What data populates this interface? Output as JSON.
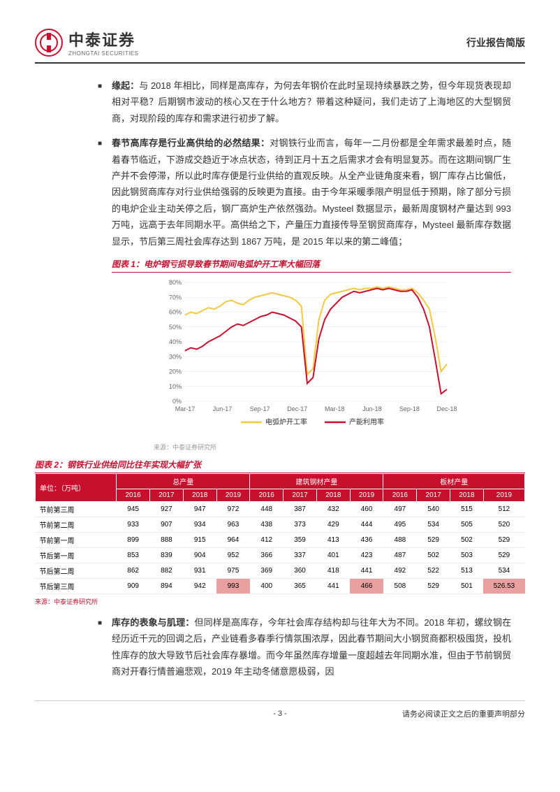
{
  "header": {
    "logo_main": "中泰证券",
    "logo_sub": "ZHONGTAI SECURITIES",
    "right": "行业报告简版"
  },
  "bullets": [
    {
      "bold": "缘起：",
      "text": "与 2018 年相比，同样是高库存，为何去年钢价在此时呈现持续暴跌之势，但今年现货表现却相对平稳？后期钢市波动的核心又在于什么地方？带着这种疑问，我们走访了上海地区的大型钢贸商，对现阶段的库存和需求进行初步了解。"
    },
    {
      "bold": "春节高库存是行业高供给的必然结果：",
      "text": "对钢铁行业而言，每年一二月份都是全年需求最差时点，随着春节临近，下游成交趋近于冰点状态，待到正月十五之后需求才会有明显复苏。而在这期间钢厂生产并不会停滞，所以此时库存便是行业供给的直观反映。从全产业链角度来看，钢厂库存占比偏低，因此钢贸商库存对行业供给强弱的反映更为直接。由于今年采暖季限产明显低于预期，除了部分亏损的电炉企业主动关停之后，钢厂高炉生产依然强劲。Mysteel 数据显示，最新周度钢材产量达到 993 万吨，远高于去年同期水平。高供给之下，产量压力直接传导至钢贸商库存，Mysteel 最新库存数据显示，节后第三周社会库存达到 1867 万吨，是 2015 年以来的第二峰值；"
    }
  ],
  "chart1": {
    "title": "图表 1：电炉钢亏损导致春节期间电弧炉开工率大幅回落",
    "source": "来源：中泰证券研究所",
    "x_labels": [
      "Mar-17",
      "Jun-17",
      "Sep-17",
      "Dec-17",
      "Mar-18",
      "Jun-18",
      "Sep-18",
      "Dec-18"
    ],
    "y_labels": [
      "0%",
      "10%",
      "20%",
      "30%",
      "40%",
      "50%",
      "60%",
      "70%",
      "80%"
    ],
    "legend": [
      "电弧炉开工率",
      "产能利用率"
    ],
    "colors": {
      "series1": "#f5c842",
      "series2": "#c8102e",
      "grid": "#e5e5e5",
      "text": "#666"
    },
    "series1": [
      58,
      60,
      59,
      61,
      63,
      62,
      64,
      67,
      68,
      66,
      65,
      68,
      70,
      71,
      72,
      73,
      72,
      71,
      70,
      68,
      64,
      18,
      22,
      55,
      68,
      72,
      73,
      74,
      75,
      76,
      75,
      76,
      76,
      77,
      76,
      77,
      76,
      75,
      75,
      76,
      73,
      68,
      62,
      43,
      20,
      25
    ],
    "series2": [
      34,
      36,
      35,
      37,
      40,
      42,
      44,
      47,
      50,
      52,
      51,
      53,
      55,
      57,
      58,
      60,
      59,
      58,
      56,
      54,
      50,
      12,
      16,
      42,
      55,
      62,
      66,
      70,
      72,
      74,
      73,
      74,
      75,
      76,
      75,
      76,
      75,
      74,
      74,
      75,
      70,
      62,
      50,
      28,
      5,
      8
    ]
  },
  "table2": {
    "title": "图表 2：钢铁行业供给同比往年实现大幅扩张",
    "unit": "单位：（万吨）",
    "groups": [
      "总产量",
      "建筑钢材产量",
      "板材产量"
    ],
    "years": [
      "2016",
      "2017",
      "2018",
      "2019"
    ],
    "rows": [
      {
        "label": "节前第三周",
        "v": [
          "945",
          "927",
          "947",
          "972",
          "448",
          "387",
          "432",
          "460",
          "497",
          "540",
          "515",
          "512"
        ]
      },
      {
        "label": "节前第二周",
        "v": [
          "933",
          "907",
          "934",
          "963",
          "438",
          "373",
          "429",
          "444",
          "495",
          "534",
          "505",
          "520"
        ]
      },
      {
        "label": "节前第一周",
        "v": [
          "899",
          "888",
          "915",
          "964",
          "412",
          "359",
          "413",
          "436",
          "488",
          "529",
          "502",
          "529"
        ]
      },
      {
        "label": "节后第一周",
        "v": [
          "853",
          "839",
          "904",
          "952",
          "366",
          "337",
          "401",
          "423",
          "487",
          "502",
          "503",
          "529"
        ]
      },
      {
        "label": "节后第二周",
        "v": [
          "862",
          "882",
          "931",
          "975",
          "369",
          "360",
          "418",
          "441",
          "492",
          "522",
          "513",
          "534"
        ]
      },
      {
        "label": "节后第三周",
        "v": [
          "909",
          "894",
          "942",
          "993",
          "400",
          "365",
          "441",
          "466",
          "508",
          "529",
          "501",
          "526.53"
        ],
        "hl": [
          3,
          7,
          11
        ]
      }
    ],
    "source": "来源：中泰证券研究所"
  },
  "bullet3": {
    "bold": "库存的表象与肌理：",
    "text": "但同样是高库存，今年社会库存结构却与往年大为不同。2018 年初，螺纹钢在经历近千元的回调之后，产业链看多春季行情氛围浓厚，因此春节期间大小钢贸商都积极囤货，投机性库存的放大导致节后社会库存暴增。而今年虽然库存增量一度超越去年同期水准，但由于节前钢贸商对开春行情普遍悲观，2019 年主动冬储意愿极弱，因"
  },
  "footer": {
    "page": "- 3 -",
    "disclaimer": "请务必阅读正文之后的重要声明部分"
  }
}
